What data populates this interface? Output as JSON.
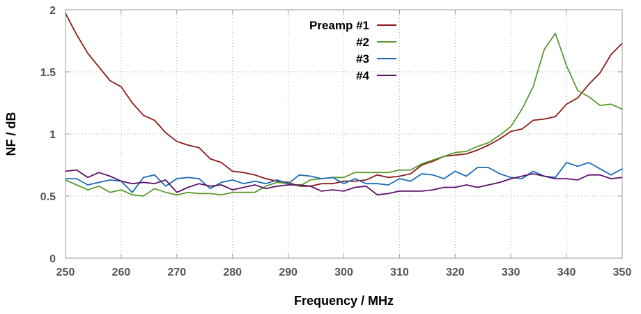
{
  "chart_data": {
    "type": "line",
    "title": "",
    "xlabel": "Frequency / MHz",
    "ylabel": "NF / dB",
    "xlim": [
      250,
      350
    ],
    "ylim": [
      0,
      2
    ],
    "x_ticks": [
      250,
      260,
      270,
      280,
      290,
      300,
      310,
      320,
      330,
      340,
      350
    ],
    "y_ticks": [
      0,
      0.5,
      1,
      1.5,
      2
    ],
    "y_tick_labels": [
      "0",
      "0.5",
      "1",
      "1.5",
      "2"
    ],
    "grid": true,
    "legend_position": "top-center",
    "x": [
      250,
      252,
      254,
      256,
      258,
      260,
      262,
      264,
      266,
      268,
      270,
      272,
      274,
      276,
      278,
      280,
      282,
      284,
      286,
      288,
      290,
      292,
      294,
      296,
      298,
      300,
      302,
      304,
      306,
      308,
      310,
      312,
      314,
      316,
      318,
      320,
      322,
      324,
      326,
      328,
      330,
      332,
      334,
      336,
      338,
      340,
      342,
      344,
      346,
      348,
      350
    ],
    "series": [
      {
        "name": "Preamp #1",
        "color": "#8b1a1a",
        "values": [
          1.97,
          1.8,
          1.65,
          1.54,
          1.43,
          1.38,
          1.25,
          1.15,
          1.11,
          1.01,
          0.94,
          0.91,
          0.89,
          0.8,
          0.77,
          0.7,
          0.69,
          0.67,
          0.64,
          0.62,
          0.61,
          0.58,
          0.58,
          0.6,
          0.6,
          0.62,
          0.62,
          0.63,
          0.67,
          0.65,
          0.66,
          0.68,
          0.75,
          0.78,
          0.82,
          0.83,
          0.84,
          0.87,
          0.91,
          0.96,
          1.02,
          1.04,
          1.11,
          1.12,
          1.14,
          1.24,
          1.29,
          1.4,
          1.49,
          1.64,
          1.73
        ]
      },
      {
        "name": "#2",
        "color": "#5a9a2e",
        "values": [
          0.63,
          0.59,
          0.55,
          0.58,
          0.53,
          0.55,
          0.51,
          0.5,
          0.56,
          0.53,
          0.51,
          0.53,
          0.52,
          0.52,
          0.51,
          0.53,
          0.53,
          0.53,
          0.58,
          0.61,
          0.6,
          0.58,
          0.63,
          0.64,
          0.65,
          0.65,
          0.69,
          0.69,
          0.69,
          0.69,
          0.71,
          0.71,
          0.76,
          0.79,
          0.82,
          0.85,
          0.86,
          0.9,
          0.93,
          0.99,
          1.06,
          1.2,
          1.38,
          1.68,
          1.81,
          1.55,
          1.35,
          1.3,
          1.23,
          1.24,
          1.2
        ]
      },
      {
        "name": "#3",
        "color": "#1e6ab0",
        "values": [
          0.64,
          0.64,
          0.59,
          0.61,
          0.63,
          0.62,
          0.53,
          0.65,
          0.67,
          0.58,
          0.64,
          0.65,
          0.64,
          0.56,
          0.61,
          0.63,
          0.6,
          0.62,
          0.6,
          0.63,
          0.6,
          0.67,
          0.66,
          0.64,
          0.65,
          0.6,
          0.64,
          0.6,
          0.6,
          0.59,
          0.64,
          0.62,
          0.68,
          0.67,
          0.64,
          0.7,
          0.66,
          0.73,
          0.73,
          0.68,
          0.65,
          0.64,
          0.7,
          0.66,
          0.65,
          0.77,
          0.74,
          0.77,
          0.72,
          0.67,
          0.72
        ]
      },
      {
        "name": "#4",
        "color": "#5a1166",
        "values": [
          0.7,
          0.71,
          0.65,
          0.69,
          0.66,
          0.62,
          0.6,
          0.61,
          0.6,
          0.63,
          0.53,
          0.57,
          0.6,
          0.58,
          0.59,
          0.55,
          0.57,
          0.59,
          0.56,
          0.58,
          0.59,
          0.59,
          0.58,
          0.54,
          0.55,
          0.54,
          0.57,
          0.58,
          0.51,
          0.52,
          0.54,
          0.54,
          0.54,
          0.55,
          0.57,
          0.57,
          0.59,
          0.57,
          0.59,
          0.61,
          0.64,
          0.66,
          0.68,
          0.66,
          0.64,
          0.64,
          0.63,
          0.67,
          0.67,
          0.64,
          0.65
        ]
      }
    ]
  }
}
